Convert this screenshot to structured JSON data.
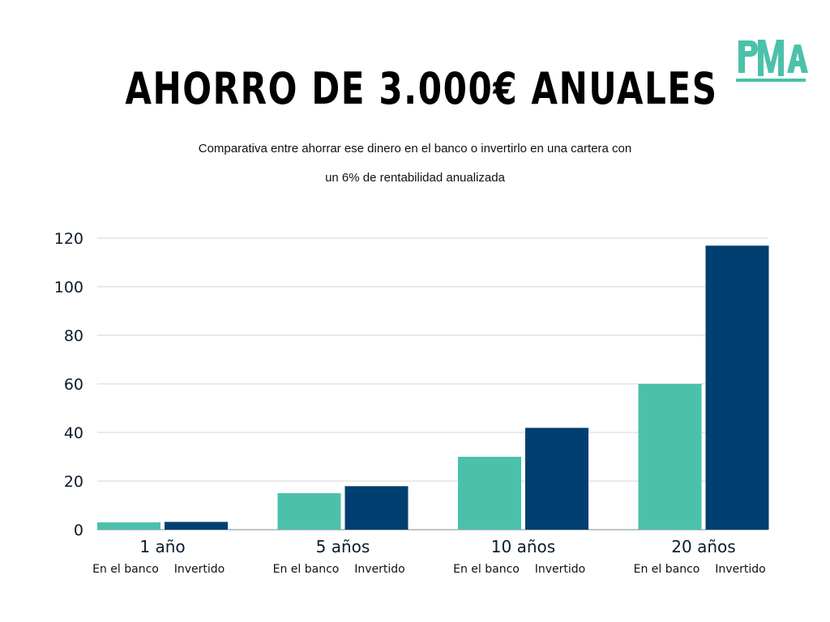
{
  "header": {
    "title": "AHORRO DE 3.000€ ANUALES",
    "subtitle_line1": "Comparativa entre ahorrar ese dinero en el banco o invertirlo en una cartera con",
    "subtitle_line2": "un 6% de rentabilidad anualizada",
    "logo_text": "PMA"
  },
  "colors": {
    "bank": "#4cc1aa",
    "invested": "#003f6f",
    "grid": "#d0d4d8",
    "logo": "#4cc1aa"
  },
  "chart_data": {
    "type": "bar",
    "title": "AHORRO DE 3.000€ ANUALES",
    "categories": [
      "1 año",
      "5 años",
      "10 años",
      "20 años"
    ],
    "bar_labels": [
      "En el banco",
      "Invertido"
    ],
    "series": [
      {
        "name": "En el banco",
        "values": [
          3,
          15,
          30,
          60
        ]
      },
      {
        "name": "Invertido",
        "values": [
          3.2,
          17.9,
          41.9,
          116.9
        ]
      }
    ],
    "ylim": [
      0,
      120
    ],
    "yticks": [
      0,
      20,
      40,
      60,
      80,
      100,
      120
    ],
    "grid": true,
    "legend": "none"
  }
}
